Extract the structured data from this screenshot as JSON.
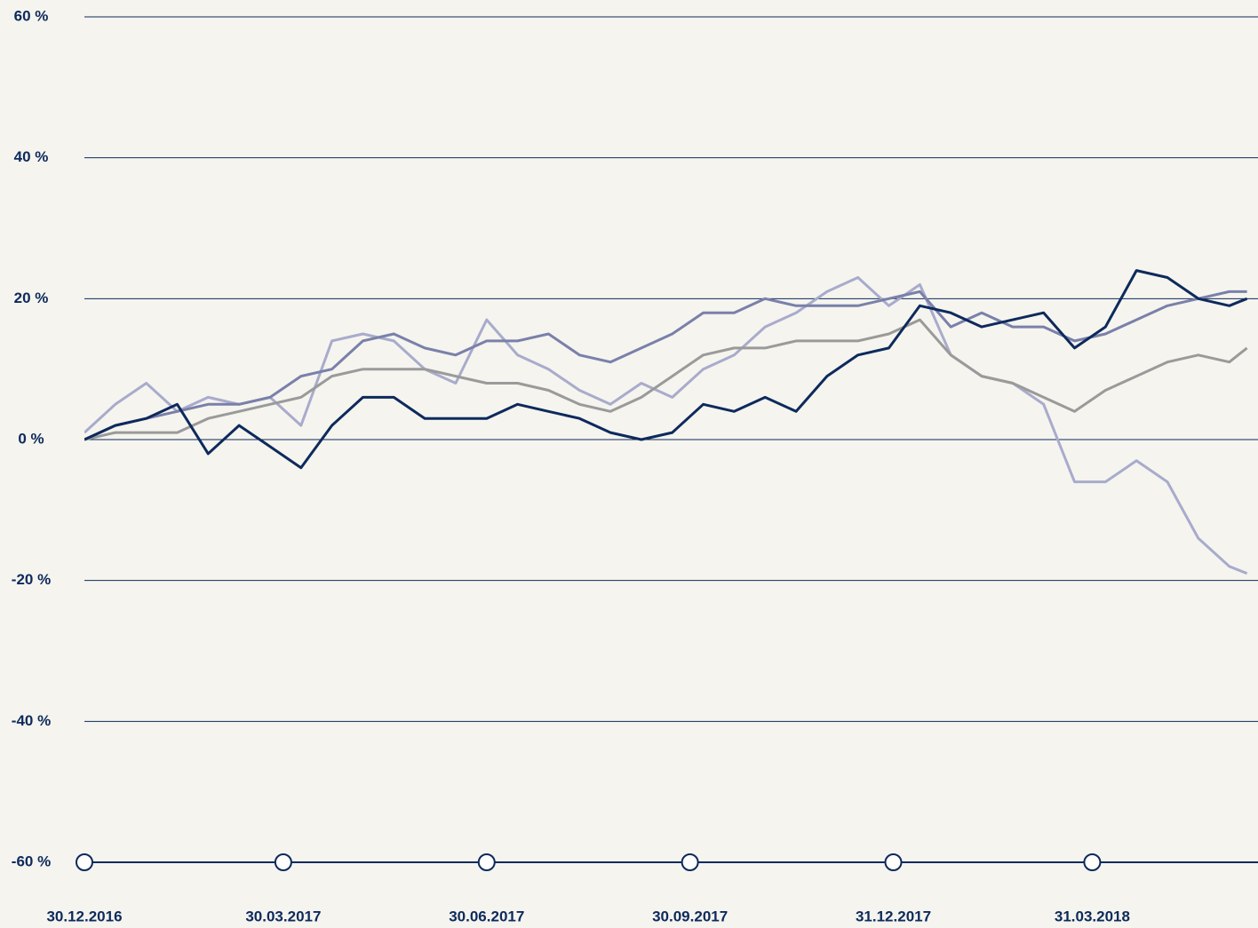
{
  "chart_data": {
    "type": "line",
    "x": [
      "30.12.2016",
      "13.01.2017",
      "27.01.2017",
      "10.02.2017",
      "24.02.2017",
      "10.03.2017",
      "24.03.2017",
      "07.04.2017",
      "21.04.2017",
      "05.05.2017",
      "19.05.2017",
      "02.06.2017",
      "16.06.2017",
      "30.06.2017",
      "14.07.2017",
      "28.07.2017",
      "11.08.2017",
      "25.08.2017",
      "08.09.2017",
      "22.09.2017",
      "06.10.2017",
      "20.10.2017",
      "03.11.2017",
      "17.11.2017",
      "01.12.2017",
      "15.12.2017",
      "29.12.2017",
      "12.01.2018",
      "26.01.2018",
      "09.02.2018",
      "23.02.2018",
      "09.03.2018",
      "23.03.2018",
      "06.04.2018",
      "20.04.2018",
      "04.05.2018",
      "18.05.2018",
      "01.06.2018",
      "09.06.2018"
    ],
    "series": [
      {
        "color": "#a8abcc",
        "values": [
          1,
          5,
          8,
          4,
          6,
          5,
          6,
          2,
          14,
          15,
          14,
          10,
          8,
          17,
          12,
          10,
          7,
          5,
          8,
          6,
          10,
          12,
          16,
          18,
          21,
          23,
          19,
          22,
          12,
          9,
          8,
          5,
          -6,
          -6,
          -3,
          -6,
          -14,
          -18,
          -19
        ]
      },
      {
        "color": "#9a9a9a",
        "values": [
          0,
          1,
          1,
          1,
          3,
          4,
          5,
          6,
          9,
          10,
          10,
          10,
          9,
          8,
          8,
          7,
          5,
          4,
          6,
          9,
          12,
          13,
          13,
          14,
          14,
          14,
          15,
          17,
          12,
          9,
          8,
          6,
          4,
          7,
          9,
          11,
          12,
          11,
          13
        ]
      },
      {
        "color": "#7a80aa",
        "values": [
          0,
          2,
          3,
          4,
          5,
          5,
          6,
          9,
          10,
          14,
          15,
          13,
          12,
          14,
          14,
          15,
          12,
          11,
          13,
          15,
          18,
          18,
          20,
          19,
          19,
          19,
          20,
          21,
          16,
          18,
          16,
          16,
          14,
          15,
          17,
          19,
          20,
          21,
          21
        ]
      },
      {
        "color": "#0d2a5c",
        "values": [
          0,
          2,
          3,
          5,
          -2,
          2,
          -1,
          -4,
          2,
          6,
          6,
          3,
          3,
          3,
          5,
          4,
          3,
          1,
          0,
          1,
          5,
          4,
          6,
          4,
          9,
          12,
          13,
          19,
          18,
          16,
          17,
          18,
          13,
          16,
          24,
          23,
          20,
          19,
          20
        ]
      }
    ],
    "xlim": [
      "30.12.2016",
      "14.06.2018"
    ],
    "xticks": [
      "30.12.2016",
      "30.03.2017",
      "30.06.2017",
      "30.09.2017",
      "31.12.2017",
      "31.03.2018"
    ],
    "ylim": [
      -60,
      60
    ],
    "yticks": [
      {
        "value": 60,
        "label": "60 %"
      },
      {
        "value": 40,
        "label": "40 %"
      },
      {
        "value": 20,
        "label": "20 %"
      },
      {
        "value": 0,
        "label": "0 %"
      },
      {
        "value": -20,
        "label": "-20 %"
      },
      {
        "value": -40,
        "label": "-40 %"
      },
      {
        "value": -60,
        "label": "-60 %"
      }
    ],
    "grid": true
  }
}
